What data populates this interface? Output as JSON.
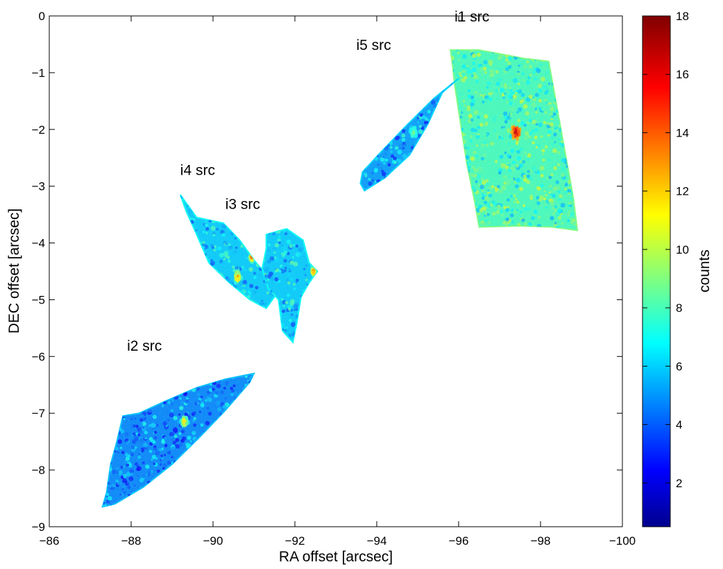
{
  "chart_data": {
    "type": "scatter",
    "title": "",
    "xlabel": "RA offset [arcsec]",
    "ylabel": "DEC offset [arcsec]",
    "xlim": [
      -86,
      -100
    ],
    "ylim": [
      -9,
      0
    ],
    "x_axis_direction": "reversed",
    "grid": false,
    "xticks": [
      "−86",
      "−88",
      "−90",
      "−92",
      "−94",
      "−96",
      "−98",
      "−100"
    ],
    "xtick_values": [
      -86,
      -88,
      -90,
      -92,
      -94,
      -96,
      -98,
      -100
    ],
    "yticks": [
      "0",
      "−1",
      "−2",
      "−3",
      "−4",
      "−5",
      "−6",
      "−7",
      "−8",
      "−9"
    ],
    "ytick_values": [
      0,
      -1,
      -2,
      -3,
      -4,
      -5,
      -6,
      -7,
      -8,
      -9
    ],
    "colorbar": {
      "label": "counts",
      "range": [
        0.5,
        18
      ],
      "colormap": "jet",
      "ticks": [
        "2",
        "4",
        "6",
        "8",
        "10",
        "12",
        "14",
        "16",
        "18"
      ],
      "tick_values": [
        2,
        4,
        6,
        8,
        10,
        12,
        14,
        16,
        18
      ]
    },
    "annotations": [
      {
        "text": "i1 src",
        "x": -95.9,
        "y": -0.1
      },
      {
        "text": "i5 src",
        "x": -93.5,
        "y": -0.6
      },
      {
        "text": "i4 src",
        "x": -89.2,
        "y": -2.8
      },
      {
        "text": "i3 src",
        "x": -90.3,
        "y": -3.4
      },
      {
        "text": "i2 src",
        "x": -87.9,
        "y": -5.9
      }
    ],
    "regions": [
      {
        "name": "i1 src",
        "outline": [
          [
            -95.8,
            -0.6
          ],
          [
            -96.5,
            -0.6
          ],
          [
            -97.6,
            -0.75
          ],
          [
            -98.2,
            -0.8
          ],
          [
            -98.4,
            -1.6
          ],
          [
            -98.6,
            -2.4
          ],
          [
            -98.8,
            -3.2
          ],
          [
            -98.9,
            -3.78
          ],
          [
            -98.3,
            -3.72
          ],
          [
            -97.5,
            -3.7
          ],
          [
            -96.5,
            -3.72
          ],
          [
            -96.4,
            -3.3
          ],
          [
            -96.2,
            -2.6
          ],
          [
            -96.05,
            -1.9
          ],
          [
            -95.9,
            -1.2
          ],
          [
            -95.85,
            -0.85
          ]
        ],
        "base_level": 8.2,
        "hotspots": [
          {
            "x": -97.4,
            "y": -2.05,
            "peak": 17,
            "sigma": 0.18
          }
        ]
      },
      {
        "name": "i5 src",
        "outline": [
          [
            -96.0,
            -1.1
          ],
          [
            -95.6,
            -1.35
          ],
          [
            -95.25,
            -1.9
          ],
          [
            -94.8,
            -2.45
          ],
          [
            -94.2,
            -2.85
          ],
          [
            -93.7,
            -3.08
          ],
          [
            -93.6,
            -2.95
          ],
          [
            -93.65,
            -2.75
          ],
          [
            -94.1,
            -2.4
          ],
          [
            -94.7,
            -1.95
          ],
          [
            -95.4,
            -1.45
          ]
        ],
        "base_level": 5.4,
        "hotspots": [
          {
            "x": -94.9,
            "y": -2.05,
            "peak": 9,
            "sigma": 0.12
          }
        ]
      },
      {
        "name": "i4 src",
        "outline": [
          [
            -89.2,
            -3.15
          ],
          [
            -89.6,
            -3.55
          ],
          [
            -90.25,
            -3.65
          ],
          [
            -90.65,
            -3.95
          ],
          [
            -91.0,
            -4.3
          ],
          [
            -91.35,
            -4.6
          ],
          [
            -91.6,
            -4.85
          ],
          [
            -91.3,
            -5.15
          ],
          [
            -90.9,
            -5.0
          ],
          [
            -90.4,
            -4.7
          ],
          [
            -89.9,
            -4.35
          ],
          [
            -89.6,
            -3.85
          ],
          [
            -89.35,
            -3.45
          ]
        ],
        "base_level": 6.2,
        "hotspots": [
          {
            "x": -90.6,
            "y": -4.6,
            "peak": 14,
            "sigma": 0.1
          },
          {
            "x": -90.95,
            "y": -4.25,
            "peak": 14,
            "sigma": 0.08
          }
        ]
      },
      {
        "name": "i3 src",
        "outline": [
          [
            -91.3,
            -3.85
          ],
          [
            -91.8,
            -3.75
          ],
          [
            -92.2,
            -3.95
          ],
          [
            -92.35,
            -4.35
          ],
          [
            -92.55,
            -4.5
          ],
          [
            -92.35,
            -4.7
          ],
          [
            -92.15,
            -4.95
          ],
          [
            -92.05,
            -5.4
          ],
          [
            -91.95,
            -5.75
          ],
          [
            -91.7,
            -5.55
          ],
          [
            -91.6,
            -5.0
          ],
          [
            -91.35,
            -4.8
          ],
          [
            -91.2,
            -4.45
          ],
          [
            -91.3,
            -4.1
          ]
        ],
        "base_level": 6.2,
        "hotspots": [
          {
            "x": -92.45,
            "y": -4.5,
            "peak": 14,
            "sigma": 0.07
          }
        ]
      },
      {
        "name": "i2 src",
        "outline": [
          [
            -87.3,
            -8.65
          ],
          [
            -87.4,
            -8.4
          ],
          [
            -87.5,
            -7.9
          ],
          [
            -87.65,
            -7.5
          ],
          [
            -87.8,
            -7.05
          ],
          [
            -88.2,
            -7.0
          ],
          [
            -88.8,
            -6.8
          ],
          [
            -89.6,
            -6.55
          ],
          [
            -90.3,
            -6.4
          ],
          [
            -91.0,
            -6.3
          ],
          [
            -90.9,
            -6.45
          ],
          [
            -90.3,
            -6.95
          ],
          [
            -89.7,
            -7.4
          ],
          [
            -89.0,
            -7.9
          ],
          [
            -88.3,
            -8.3
          ],
          [
            -87.6,
            -8.6
          ]
        ],
        "base_level": 5.0,
        "hotspots": [
          {
            "x": -89.3,
            "y": -7.15,
            "peak": 13,
            "sigma": 0.1
          }
        ]
      }
    ]
  }
}
